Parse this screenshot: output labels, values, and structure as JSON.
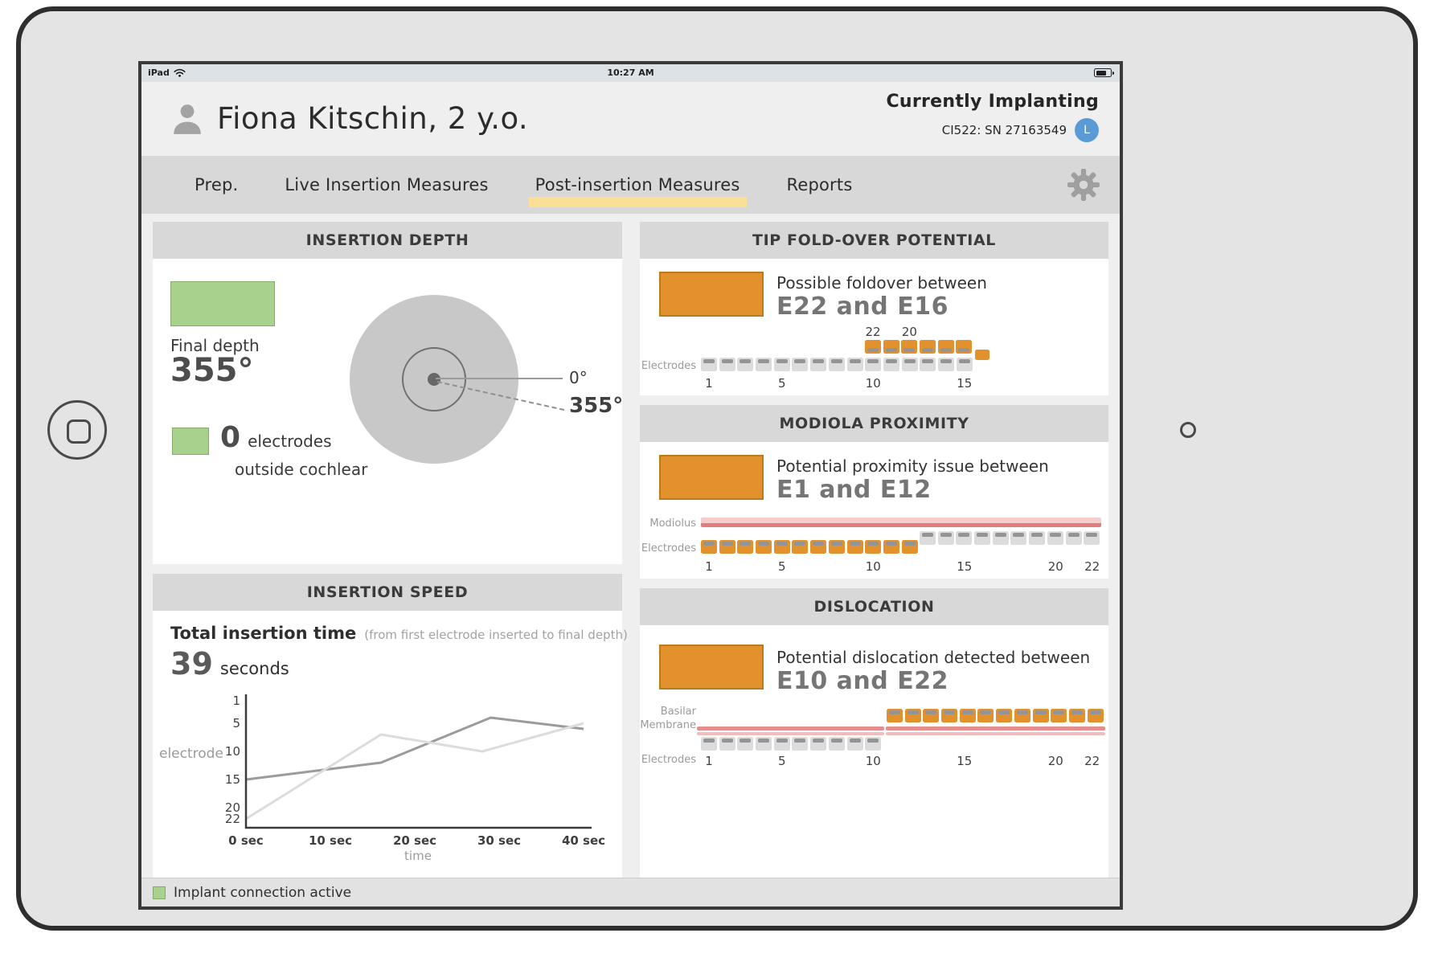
{
  "status_bar": {
    "carrier": "iPad",
    "time": "10:27 AM"
  },
  "header": {
    "patient_name": "Fiona Kitschin, 2 y.o.",
    "status_title": "Currently Implanting",
    "implant_info": "CI522: SN 27163549",
    "avatar_initial": "L"
  },
  "tabs": [
    {
      "label": "Prep.",
      "active": false
    },
    {
      "label": "Live Insertion Measures",
      "active": false
    },
    {
      "label": "Post-insertion Measures",
      "active": true
    },
    {
      "label": "Reports",
      "active": false
    }
  ],
  "panels": {
    "insertion_depth": {
      "title": "INSERTION DEPTH",
      "final_depth_label": "Final depth",
      "final_depth_value": "355°",
      "angle_zero": "0°",
      "angle_final": "355°",
      "outside_count": "0",
      "outside_unit": "electrodes",
      "outside_caption": "outside cochlear"
    },
    "insertion_speed": {
      "title": "INSERTION SPEED",
      "total_time_label": "Total insertion time",
      "total_time_note": "(from first electrode inserted to final depth)",
      "total_time_value": "39",
      "total_time_unit": "seconds"
    },
    "tip_foldover": {
      "title": "TIP FOLD-OVER POTENTIAL",
      "message": "Possible foldover between",
      "range": "E22 and E16",
      "electrodes_label": "Electrodes",
      "base_count": 15,
      "fold_count": 6,
      "fold_labels": [
        {
          "at": 1,
          "label": "22"
        },
        {
          "at": 3,
          "label": "20"
        }
      ],
      "ticks": [
        {
          "at": 1,
          "label": "1"
        },
        {
          "at": 5,
          "label": "5"
        },
        {
          "at": 10,
          "label": "10"
        },
        {
          "at": 15,
          "label": "15"
        }
      ]
    },
    "modiola": {
      "title": "MODIOLA PROXIMITY",
      "message": "Potential proximity issue between",
      "range": "E1 and E12",
      "modiolus_label": "Modiolus",
      "electrodes_label": "Electrodes",
      "orange_count": 12,
      "grey_count": 10,
      "ticks": [
        {
          "at": 1,
          "label": "1"
        },
        {
          "at": 5,
          "label": "5"
        },
        {
          "at": 10,
          "label": "10"
        },
        {
          "at": 15,
          "label": "15"
        },
        {
          "at": 20,
          "label": "20"
        },
        {
          "at": 22,
          "label": "22"
        }
      ]
    },
    "dislocation": {
      "title": "DISLOCATION",
      "message": "Potential dislocation detected between",
      "range": "E10 and E22",
      "membrane_label_line1": "Basilar",
      "membrane_label_line2": "Membrane",
      "electrodes_label": "Electrodes",
      "grey_count": 10,
      "orange_count": 12,
      "ticks": [
        {
          "at": 1,
          "label": "1"
        },
        {
          "at": 5,
          "label": "5"
        },
        {
          "at": 10,
          "label": "10"
        },
        {
          "at": 15,
          "label": "15"
        },
        {
          "at": 20,
          "label": "20"
        },
        {
          "at": 22,
          "label": "22"
        }
      ]
    }
  },
  "footer": {
    "status": "Implant connection active"
  },
  "colors": {
    "orange": "#e2912d",
    "green": "#a9d18e",
    "active_tab_yellow": "#fbdf96",
    "avatar_blue": "#5b9bd5",
    "membrane_pink": "#e58d8d",
    "membrane_pink_light": "#f2bcbc",
    "electrode_grey": "#dcdcdc"
  },
  "chart_data": {
    "type": "line",
    "title": "INSERTION SPEED",
    "xlabel": "time",
    "ylabel": "electrode",
    "y_inverted": true,
    "xlim": [
      0,
      40
    ],
    "ylim": [
      1,
      22
    ],
    "yticks": [
      1,
      5,
      10,
      15,
      20,
      22
    ],
    "xticks": [
      {
        "t": 0,
        "label": "0 sec"
      },
      {
        "t": 10,
        "label": "10 sec"
      },
      {
        "t": 20,
        "label": "20 sec"
      },
      {
        "t": 30,
        "label": "30 sec"
      },
      {
        "t": 40,
        "label": "40 sec"
      }
    ],
    "series": [
      {
        "name": "trace-primary",
        "color": "#9b9b9b",
        "points": [
          {
            "t": 0,
            "electrode": 15
          },
          {
            "t": 16,
            "electrode": 12
          },
          {
            "t": 29,
            "electrode": 4
          },
          {
            "t": 40,
            "electrode": 6
          }
        ]
      },
      {
        "name": "trace-secondary",
        "color": "#dcdcdc",
        "points": [
          {
            "t": 0,
            "electrode": 22
          },
          {
            "t": 16,
            "electrode": 7
          },
          {
            "t": 28,
            "electrode": 10
          },
          {
            "t": 40,
            "electrode": 5
          }
        ]
      }
    ]
  }
}
